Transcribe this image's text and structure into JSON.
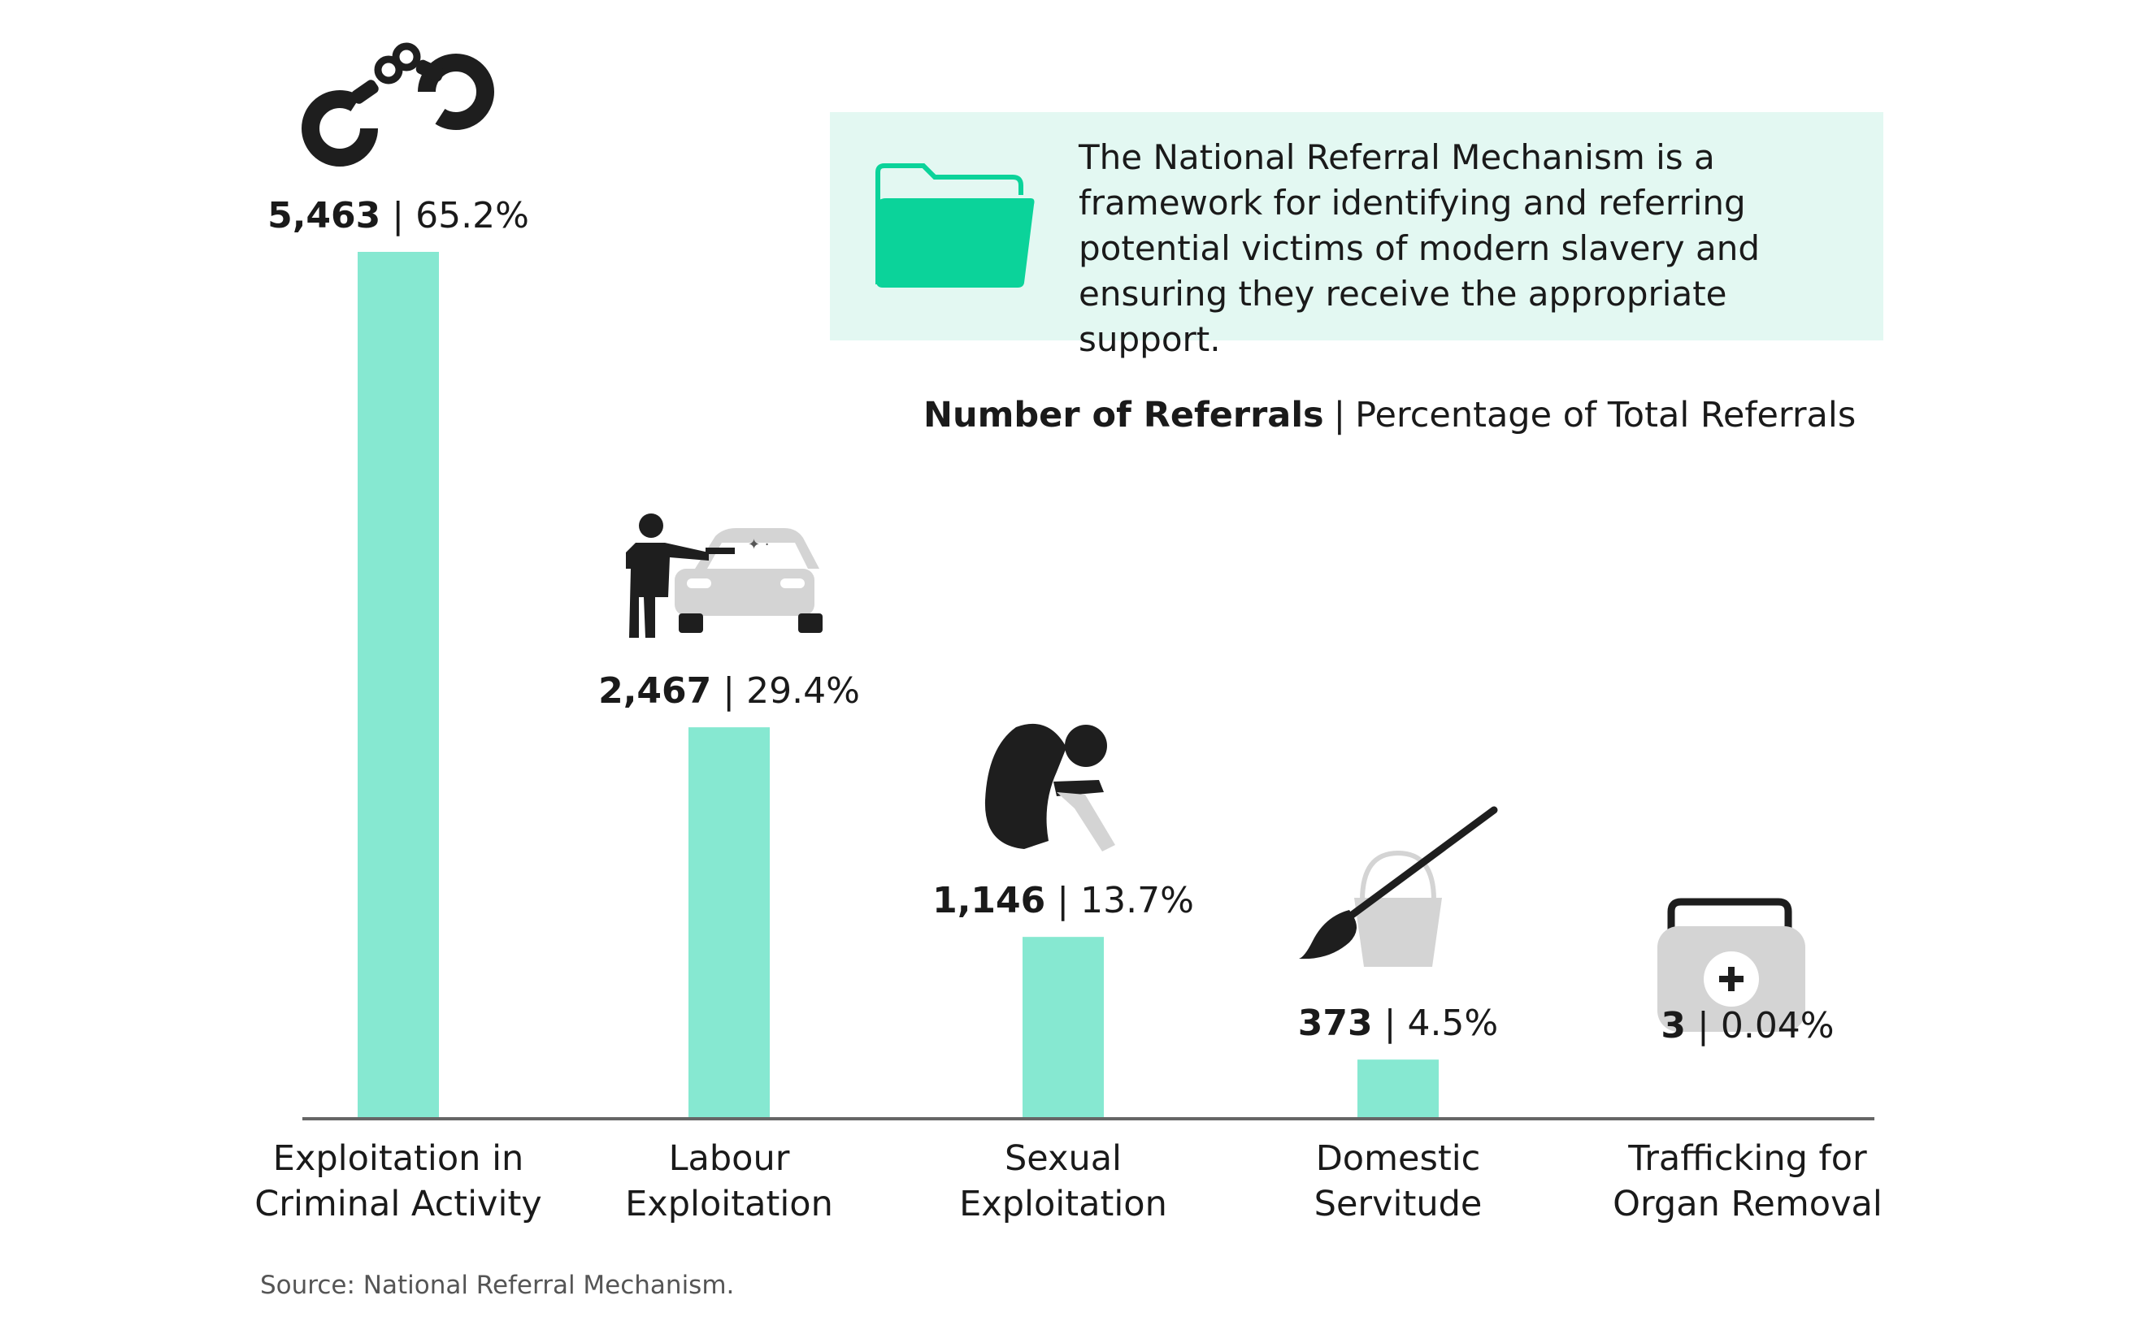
{
  "info_box": {
    "text": "The National Referral Mechanism is a framework for identifying and referring potential victims of modern slavery and ensuring they receive the appropriate support."
  },
  "legend": {
    "primary": "Number of Referrals",
    "separator": "|",
    "secondary": "Percentage of Total Referrals"
  },
  "source": "Source: National Referral Mechanism.",
  "colors": {
    "bar": "#86e8d1",
    "info_bg": "#e3f8f2",
    "folder": "#0bd39a",
    "icon_dark": "#1e1e1e",
    "icon_grey": "#d4d4d4",
    "axis": "#666666"
  },
  "chart_data": {
    "type": "bar",
    "categories": [
      [
        "Exploitation in",
        "Criminal Activity"
      ],
      [
        "Labour",
        "Exploitation"
      ],
      [
        "Sexual",
        "Exploitation"
      ],
      [
        "Domestic",
        "Servitude"
      ],
      [
        "Trafficking for",
        "Organ Removal"
      ]
    ],
    "values": [
      5463,
      2467,
      1146,
      373,
      3
    ],
    "value_labels": [
      "5,463",
      "2,467",
      "1,146",
      "373",
      "3"
    ],
    "percentages": [
      "65.2%",
      "29.4%",
      "13.7%",
      "4.5%",
      "0.04%"
    ],
    "icons": [
      "handcuffs-icon",
      "car-washer-icon",
      "distressed-person-icon",
      "bucket-mop-icon",
      "first-aid-kit-icon"
    ],
    "ylim": [
      0,
      5463
    ],
    "grid": false,
    "legend_placement": "top-right"
  }
}
